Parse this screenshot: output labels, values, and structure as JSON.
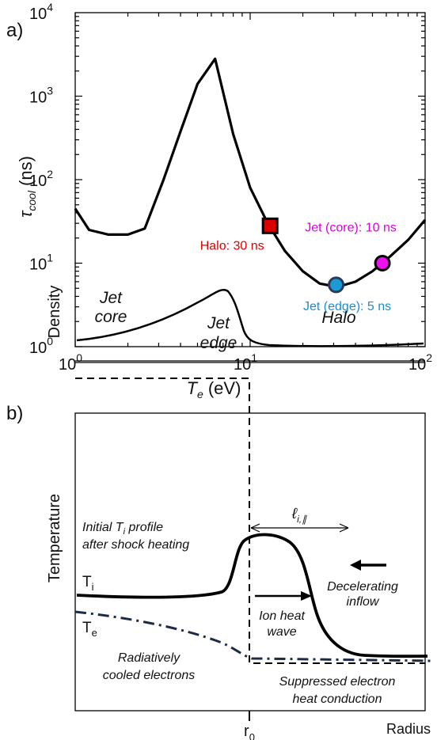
{
  "panel_a": {
    "label": "a)",
    "chart_data": {
      "type": "line",
      "title": "",
      "xlabel_symbol": "T",
      "xlabel_sub": "e",
      "xlabel_unit": "(eV)",
      "ylabel_symbol": "τ",
      "ylabel_sub": "cool",
      "ylabel_unit": "(ns)",
      "xscale": "log",
      "yscale": "log",
      "xlim": [
        1,
        100
      ],
      "ylim": [
        1,
        10000
      ],
      "x_ticks": [
        {
          "base": "10",
          "exp": "0",
          "value": 1
        },
        {
          "base": "10",
          "exp": "1",
          "value": 10
        },
        {
          "base": "10",
          "exp": "2",
          "value": 100
        }
      ],
      "y_ticks": [
        {
          "base": "10",
          "exp": "0",
          "value": 1
        },
        {
          "base": "10",
          "exp": "1",
          "value": 10
        },
        {
          "base": "10",
          "exp": "2",
          "value": 100
        },
        {
          "base": "10",
          "exp": "3",
          "value": 1000
        },
        {
          "base": "10",
          "exp": "4",
          "value": 10000
        }
      ],
      "series": [
        {
          "x": [
            1.0,
            1.2,
            1.55,
            2.0,
            2.5,
            3.2,
            4.0,
            5.0,
            6.3,
            8.0,
            10.0,
            12.6,
            15.8,
            20.0,
            25.0,
            31.6,
            40.0,
            50.0,
            56.0,
            63.0,
            80.0,
            100.0
          ],
          "y": [
            45,
            25,
            22,
            22,
            26,
            100,
            380,
            1400,
            2800,
            350,
            80,
            30,
            14,
            8,
            5.7,
            5.2,
            6.0,
            8.0,
            9.8,
            12,
            19,
            33
          ]
        }
      ],
      "markers": [
        {
          "label": "Halo: 30 ns",
          "x": 13,
          "y": 28,
          "shape": "square",
          "color": "#dd0000",
          "label_color": "#dd0000"
        },
        {
          "label": "Jet (edge): 5 ns",
          "x": 31,
          "y": 5.5,
          "shape": "circle",
          "color": "#1b9ad6",
          "label_color": "#1b8ccc"
        },
        {
          "label": "Jet (core): 10 ns",
          "x": 57,
          "y": 10,
          "shape": "circle",
          "color": "#ee10ee",
          "label_color": "#dd00dd"
        }
      ]
    }
  },
  "panel_b": {
    "label": "b)",
    "density": {
      "ylabel": "Density",
      "jet_core": [
        "Jet",
        "core"
      ],
      "jet_edge": [
        "Jet",
        "edge"
      ],
      "halo": "Halo"
    },
    "temperature": {
      "ylabel": "Temperature",
      "ti_label": "T",
      "ti_sub": "i",
      "te_label": "T",
      "te_sub": "e",
      "initial_line1_pre": "Initial ",
      "initial_line1_sym": "T",
      "initial_line1_sub": "i",
      "initial_line1_post": " profile",
      "initial_line2": "after shock heating",
      "mfp_symbol": "ℓ",
      "mfp_sub": "i,∥",
      "decelerating": [
        "Decelerating",
        "inflow"
      ],
      "ion_heat": [
        "Ion heat",
        "wave"
      ],
      "radiative": [
        "Radiatively",
        "cooled electrons"
      ],
      "suppressed": [
        "Suppressed electron",
        "heat conduction"
      ]
    },
    "x_axis": {
      "r0_label": "r",
      "r0_sub": "0",
      "radius_label": "Radius"
    }
  }
}
